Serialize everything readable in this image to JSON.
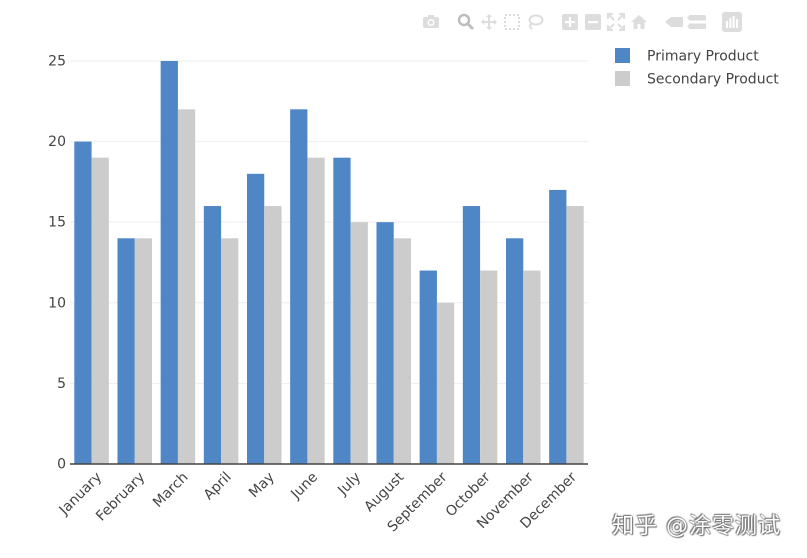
{
  "chart_data": {
    "type": "bar",
    "title": "",
    "xlabel": "",
    "ylabel": "",
    "categories": [
      "January",
      "February",
      "March",
      "April",
      "May",
      "June",
      "July",
      "August",
      "September",
      "October",
      "November",
      "December"
    ],
    "series": [
      {
        "name": "Primary Product",
        "values": [
          20,
          14,
          25,
          16,
          18,
          22,
          19,
          15,
          12,
          16,
          14,
          17
        ],
        "color": "#4f86c6"
      },
      {
        "name": "Secondary Product",
        "values": [
          19,
          14,
          22,
          14,
          16,
          19,
          15,
          14,
          10,
          12,
          12,
          16
        ],
        "color": "#cccccc"
      }
    ],
    "ylim": [
      0,
      26.3
    ],
    "yticks": [
      "0",
      "5",
      "10",
      "15",
      "20",
      "25"
    ],
    "grid": true,
    "legend": "top-right"
  },
  "modebar": {
    "icons": [
      "camera-icon",
      "zoom-icon",
      "pan-icon",
      "box-select-icon",
      "lasso-icon",
      "zoom-in-icon",
      "zoom-out-icon",
      "autoscale-icon",
      "reset-axes-icon",
      "spike-lines-icon",
      "compare-hover-icon",
      "plotly-logo-icon"
    ],
    "color": "#dddddd"
  },
  "watermark": {
    "text": "知乎 @涂零测试"
  }
}
